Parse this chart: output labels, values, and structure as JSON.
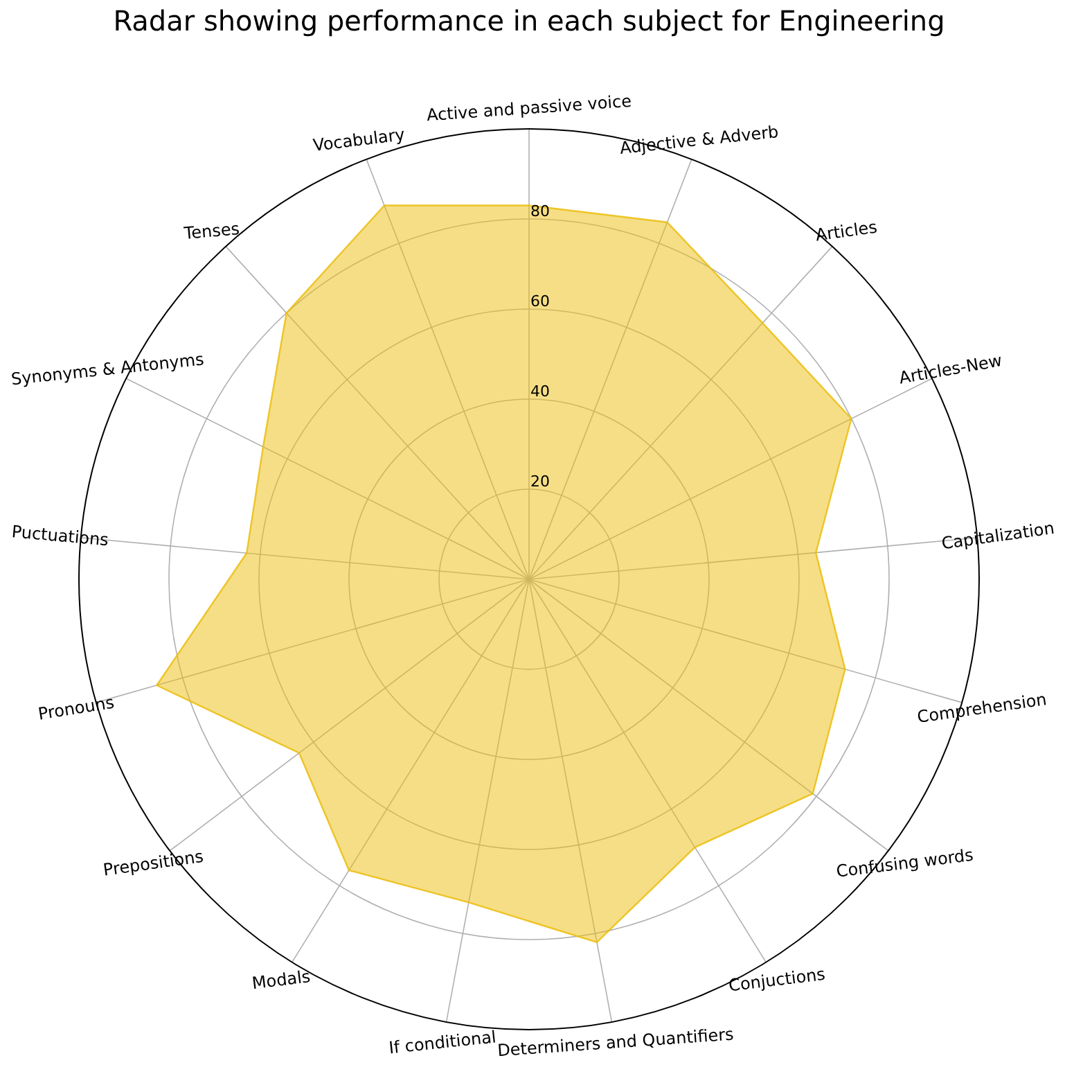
{
  "chart_data": {
    "type": "radar",
    "title": "Radar showing performance in each subject for Engineering",
    "categories": [
      "Active and passive voice",
      "Adjective & Adverb",
      "Articles",
      "Articles-New",
      "Capitalization",
      "Comprehension",
      "Confusing words",
      "Conjuctions",
      "Determiners and Quantifiers",
      "If conditional",
      "Modals",
      "Prepositions",
      "Pronouns",
      "Puctuations",
      "Synonyms & Antonyms",
      "Tenses",
      "Vocabulary"
    ],
    "series": [
      {
        "color": "#ebbd0d",
        "values": [
          83,
          85,
          77,
          80,
          64,
          73,
          79,
          70,
          82,
          73,
          76,
          64,
          86,
          63,
          66,
          80,
          89
        ]
      }
    ],
    "ylim": [
      0,
      100
    ],
    "yticks": [
      20,
      40,
      60,
      80
    ],
    "grid": true
  }
}
